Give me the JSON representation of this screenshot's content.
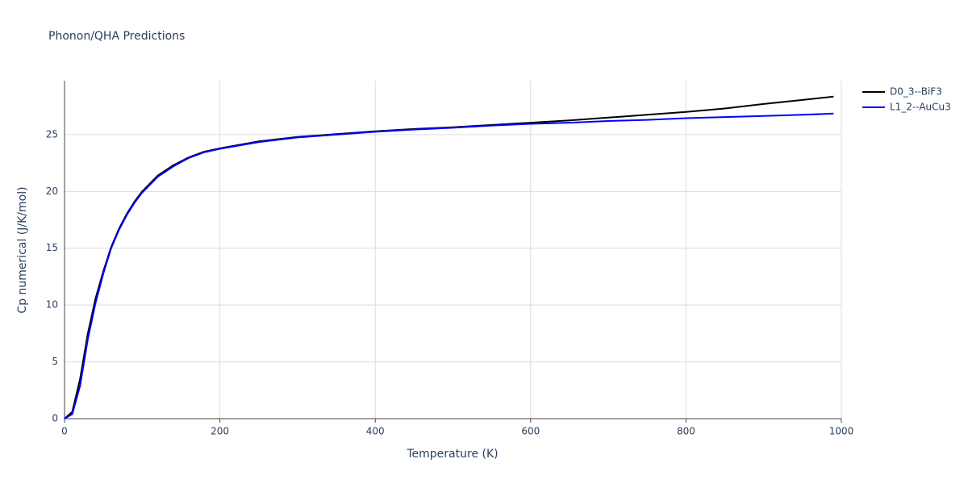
{
  "chart_data": {
    "type": "line",
    "title": "Phonon/QHA Predictions",
    "x_label": "Temperature (K)",
    "y_label": "Cp numerical (J/K/mol)",
    "x": [
      0,
      10,
      20,
      30,
      40,
      50,
      60,
      70,
      80,
      90,
      100,
      120,
      140,
      160,
      180,
      200,
      250,
      300,
      350,
      400,
      450,
      500,
      550,
      600,
      650,
      700,
      750,
      800,
      850,
      900,
      950,
      990
    ],
    "series": [
      {
        "name": "D0_3--BiF3",
        "color": "#000000",
        "values": [
          0,
          0.6,
          3.5,
          7.5,
          10.6,
          13.0,
          15.1,
          16.7,
          18.0,
          19.1,
          20.0,
          21.4,
          22.3,
          23.0,
          23.5,
          23.8,
          24.4,
          24.8,
          25.05,
          25.3,
          25.5,
          25.65,
          25.85,
          26.05,
          26.25,
          26.5,
          26.75,
          27.0,
          27.3,
          27.7,
          28.05,
          28.35
        ]
      },
      {
        "name": "L1_2--AuCu3",
        "color": "#0000ff",
        "values": [
          0,
          0.4,
          2.9,
          7.0,
          10.2,
          12.8,
          15.0,
          16.6,
          17.9,
          19.0,
          19.9,
          21.3,
          22.2,
          22.95,
          23.45,
          23.75,
          24.35,
          24.75,
          25.0,
          25.25,
          25.45,
          25.6,
          25.8,
          25.95,
          26.05,
          26.2,
          26.3,
          26.45,
          26.55,
          26.65,
          26.75,
          26.85
        ]
      }
    ],
    "xlim": [
      0,
      1000
    ],
    "xticks": [
      0,
      200,
      400,
      600,
      800,
      1000
    ],
    "ylim": [
      0,
      29.75
    ],
    "yticks": [
      0,
      5,
      10,
      15,
      20,
      25
    ],
    "grid": true,
    "legend": "outside-right"
  }
}
